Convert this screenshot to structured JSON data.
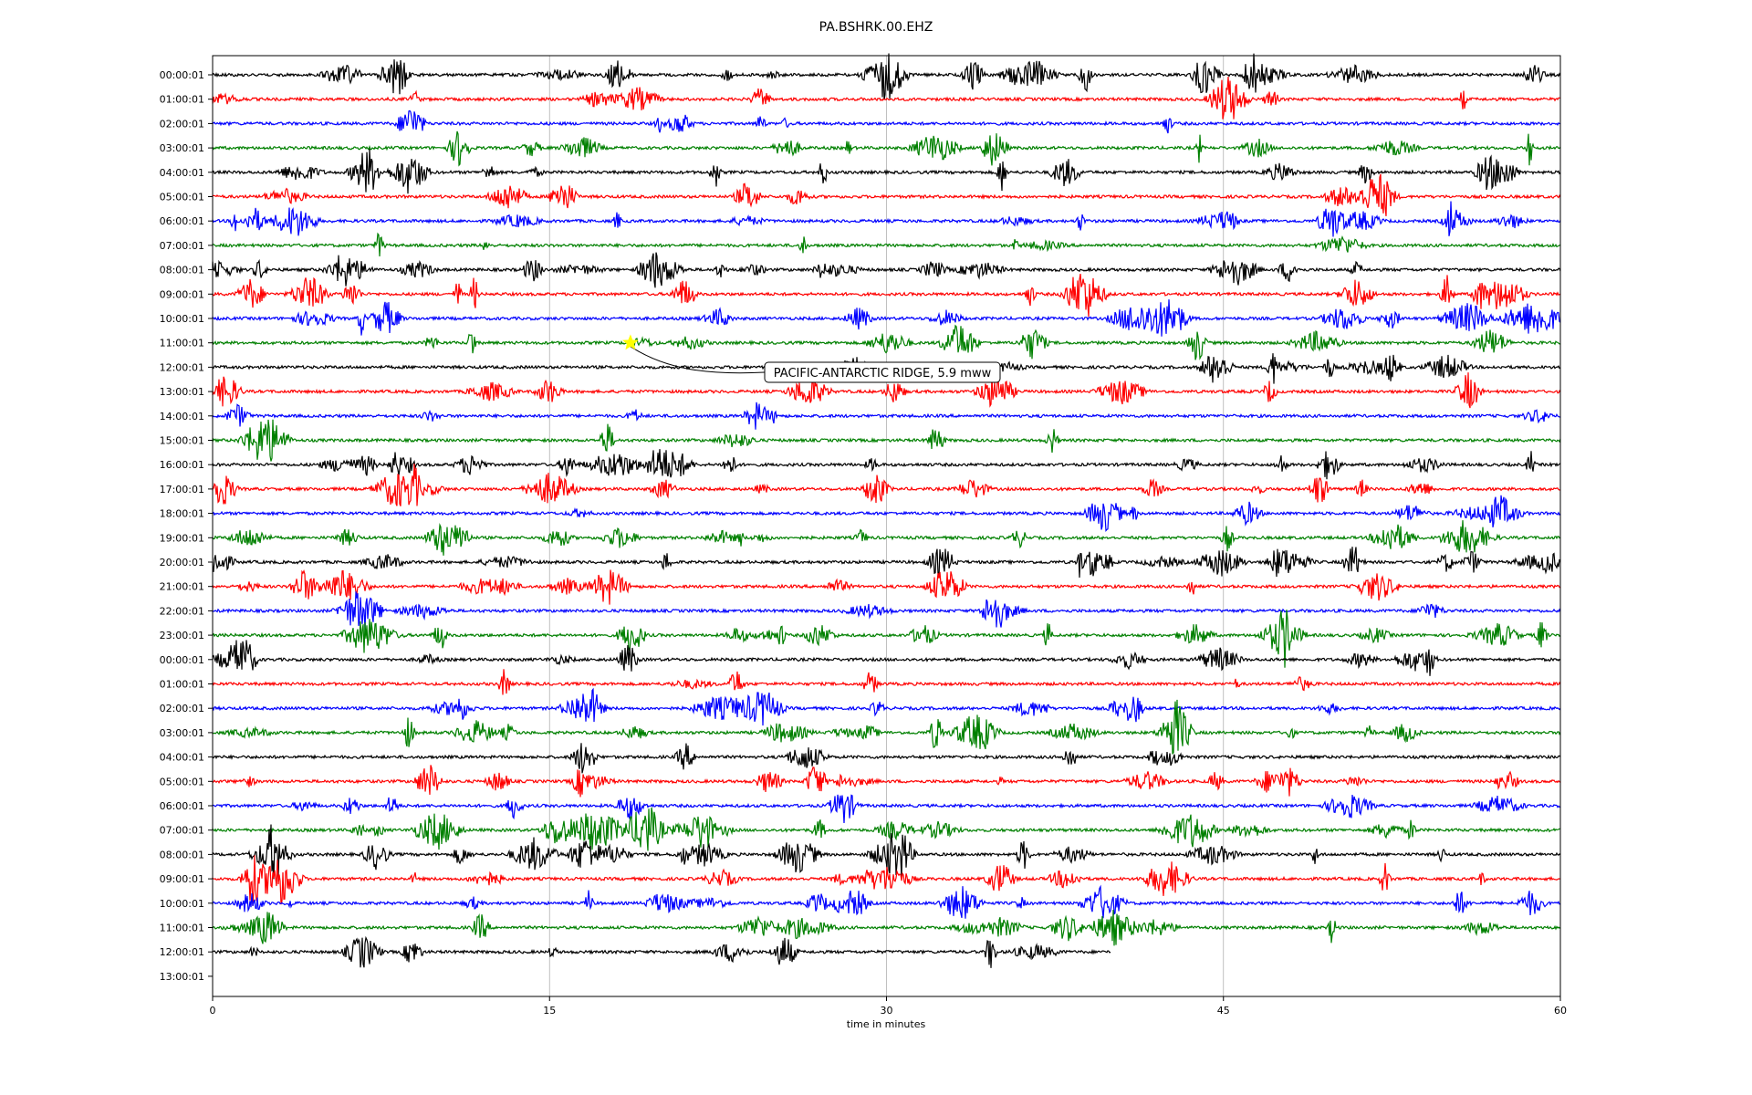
{
  "chart_data": {
    "type": "line",
    "title": "PA.BSHRK.00.EHZ",
    "xlabel": "time in minutes",
    "ylabel": "",
    "xlim": [
      0,
      60
    ],
    "x_ticks": [
      0,
      15,
      30,
      45,
      60
    ],
    "grid": "vertical",
    "row_labels": [
      "00:00:01",
      "01:00:01",
      "02:00:01",
      "03:00:01",
      "04:00:01",
      "05:00:01",
      "06:00:01",
      "07:00:01",
      "08:00:01",
      "09:00:01",
      "10:00:01",
      "11:00:01",
      "12:00:01",
      "13:00:01",
      "14:00:01",
      "15:00:01",
      "16:00:01",
      "17:00:01",
      "18:00:01",
      "19:00:01",
      "20:00:01",
      "21:00:01",
      "22:00:01",
      "23:00:01",
      "00:00:01",
      "01:00:01",
      "02:00:01",
      "03:00:01",
      "04:00:01",
      "05:00:01",
      "06:00:01",
      "07:00:01",
      "08:00:01",
      "09:00:01",
      "10:00:01",
      "11:00:01",
      "12:00:01",
      "13:00:01"
    ],
    "trace_colors": [
      "#000000",
      "#ff0000",
      "#0000ff",
      "#008000"
    ],
    "last_trace_end_minute": 40,
    "annotation": {
      "text": "PACIFIC-ANTARCTIC RIDGE, 5.9 mww",
      "row": 11,
      "minute": 18.6,
      "marker": "star",
      "marker_color": "#ffff00"
    }
  }
}
